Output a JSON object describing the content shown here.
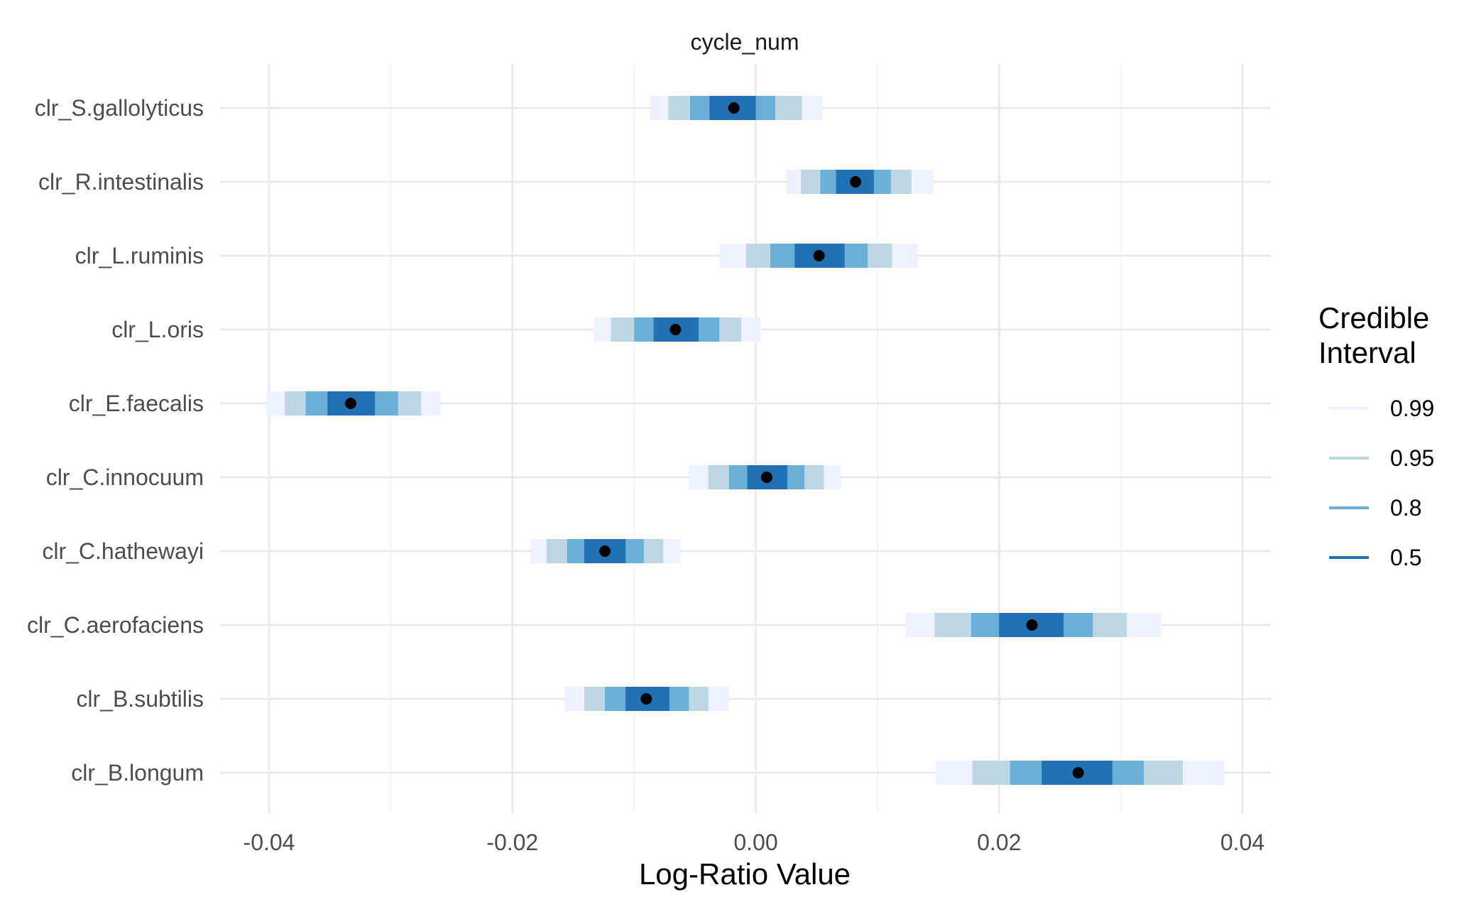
{
  "chart_data": {
    "type": "interval",
    "facet_title": "cycle_num",
    "xlabel": "Log-Ratio Value",
    "ylabel": "",
    "xlim": [
      -0.0435,
      0.0415
    ],
    "x_ticks": [
      -0.04,
      -0.02,
      0.0,
      0.02,
      0.04
    ],
    "x_tick_labels": [
      "-0.04",
      "-0.02",
      "0.00",
      "0.02",
      "0.04"
    ],
    "grid": true,
    "legend": {
      "title_lines": [
        "Credible",
        "Interval"
      ],
      "position": "right",
      "entries": [
        {
          "label": "0.99",
          "color": "#EFF3FF"
        },
        {
          "label": "0.95",
          "color": "#BDD7E7"
        },
        {
          "label": "0.8",
          "color": "#6BAED6"
        },
        {
          "label": "0.5",
          "color": "#2171B5"
        }
      ]
    },
    "point_color": "#000000",
    "categories": [
      "clr_S.gallolyticus",
      "clr_R.intestinalis",
      "clr_L.ruminis",
      "clr_L.oris",
      "clr_E.faecalis",
      "clr_C.innocuum",
      "clr_C.hathewayi",
      "clr_C.aerofaciens",
      "clr_B.subtilis",
      "clr_B.longum"
    ],
    "series": [
      {
        "category": "clr_S.gallolyticus",
        "median": -0.0018,
        "i50": [
          -0.0038,
          0.0
        ],
        "i80": [
          -0.0054,
          0.0016
        ],
        "i95": [
          -0.0072,
          0.0038
        ],
        "i99": [
          -0.0087,
          0.0055
        ]
      },
      {
        "category": "clr_R.intestinalis",
        "median": 0.0082,
        "i50": [
          0.0066,
          0.0097
        ],
        "i80": [
          0.0053,
          0.0111
        ],
        "i95": [
          0.0037,
          0.0128
        ],
        "i99": [
          0.0025,
          0.0146
        ]
      },
      {
        "category": "clr_L.ruminis",
        "median": 0.0052,
        "i50": [
          0.0032,
          0.0073
        ],
        "i80": [
          0.0012,
          0.0092
        ],
        "i95": [
          -0.0008,
          0.0112
        ],
        "i99": [
          -0.003,
          0.0133
        ]
      },
      {
        "category": "clr_L.oris",
        "median": -0.0066,
        "i50": [
          -0.0084,
          -0.0047
        ],
        "i80": [
          -0.01,
          -0.003
        ],
        "i95": [
          -0.0119,
          -0.0012
        ],
        "i99": [
          -0.0133,
          0.0004
        ]
      },
      {
        "category": "clr_E.faecalis",
        "median": -0.0333,
        "i50": [
          -0.0352,
          -0.0313
        ],
        "i80": [
          -0.037,
          -0.0294
        ],
        "i95": [
          -0.0387,
          -0.0275
        ],
        "i99": [
          -0.0402,
          -0.0259
        ]
      },
      {
        "category": "clr_C.innocuum",
        "median": 0.0009,
        "i50": [
          -0.0007,
          0.0026
        ],
        "i80": [
          -0.0022,
          0.004
        ],
        "i95": [
          -0.0039,
          0.0056
        ],
        "i99": [
          -0.0055,
          0.007
        ]
      },
      {
        "category": "clr_C.hathewayi",
        "median": -0.0124,
        "i50": [
          -0.0141,
          -0.0107
        ],
        "i80": [
          -0.0155,
          -0.0092
        ],
        "i95": [
          -0.0172,
          -0.0076
        ],
        "i99": [
          -0.0185,
          -0.0062
        ]
      },
      {
        "category": "clr_C.aerofaciens",
        "median": 0.0227,
        "i50": [
          0.02,
          0.0253
        ],
        "i80": [
          0.0177,
          0.0277
        ],
        "i95": [
          0.0147,
          0.0305
        ],
        "i99": [
          0.0123,
          0.0333
        ]
      },
      {
        "category": "clr_B.subtilis",
        "median": -0.009,
        "i50": [
          -0.0107,
          -0.0071
        ],
        "i80": [
          -0.0124,
          -0.0055
        ],
        "i95": [
          -0.0141,
          -0.0039
        ],
        "i99": [
          -0.0157,
          -0.0022
        ]
      },
      {
        "category": "clr_B.longum",
        "median": 0.0265,
        "i50": [
          0.0235,
          0.0293
        ],
        "i80": [
          0.0209,
          0.0319
        ],
        "i95": [
          0.0178,
          0.0351
        ],
        "i99": [
          0.0148,
          0.0385
        ]
      }
    ]
  }
}
